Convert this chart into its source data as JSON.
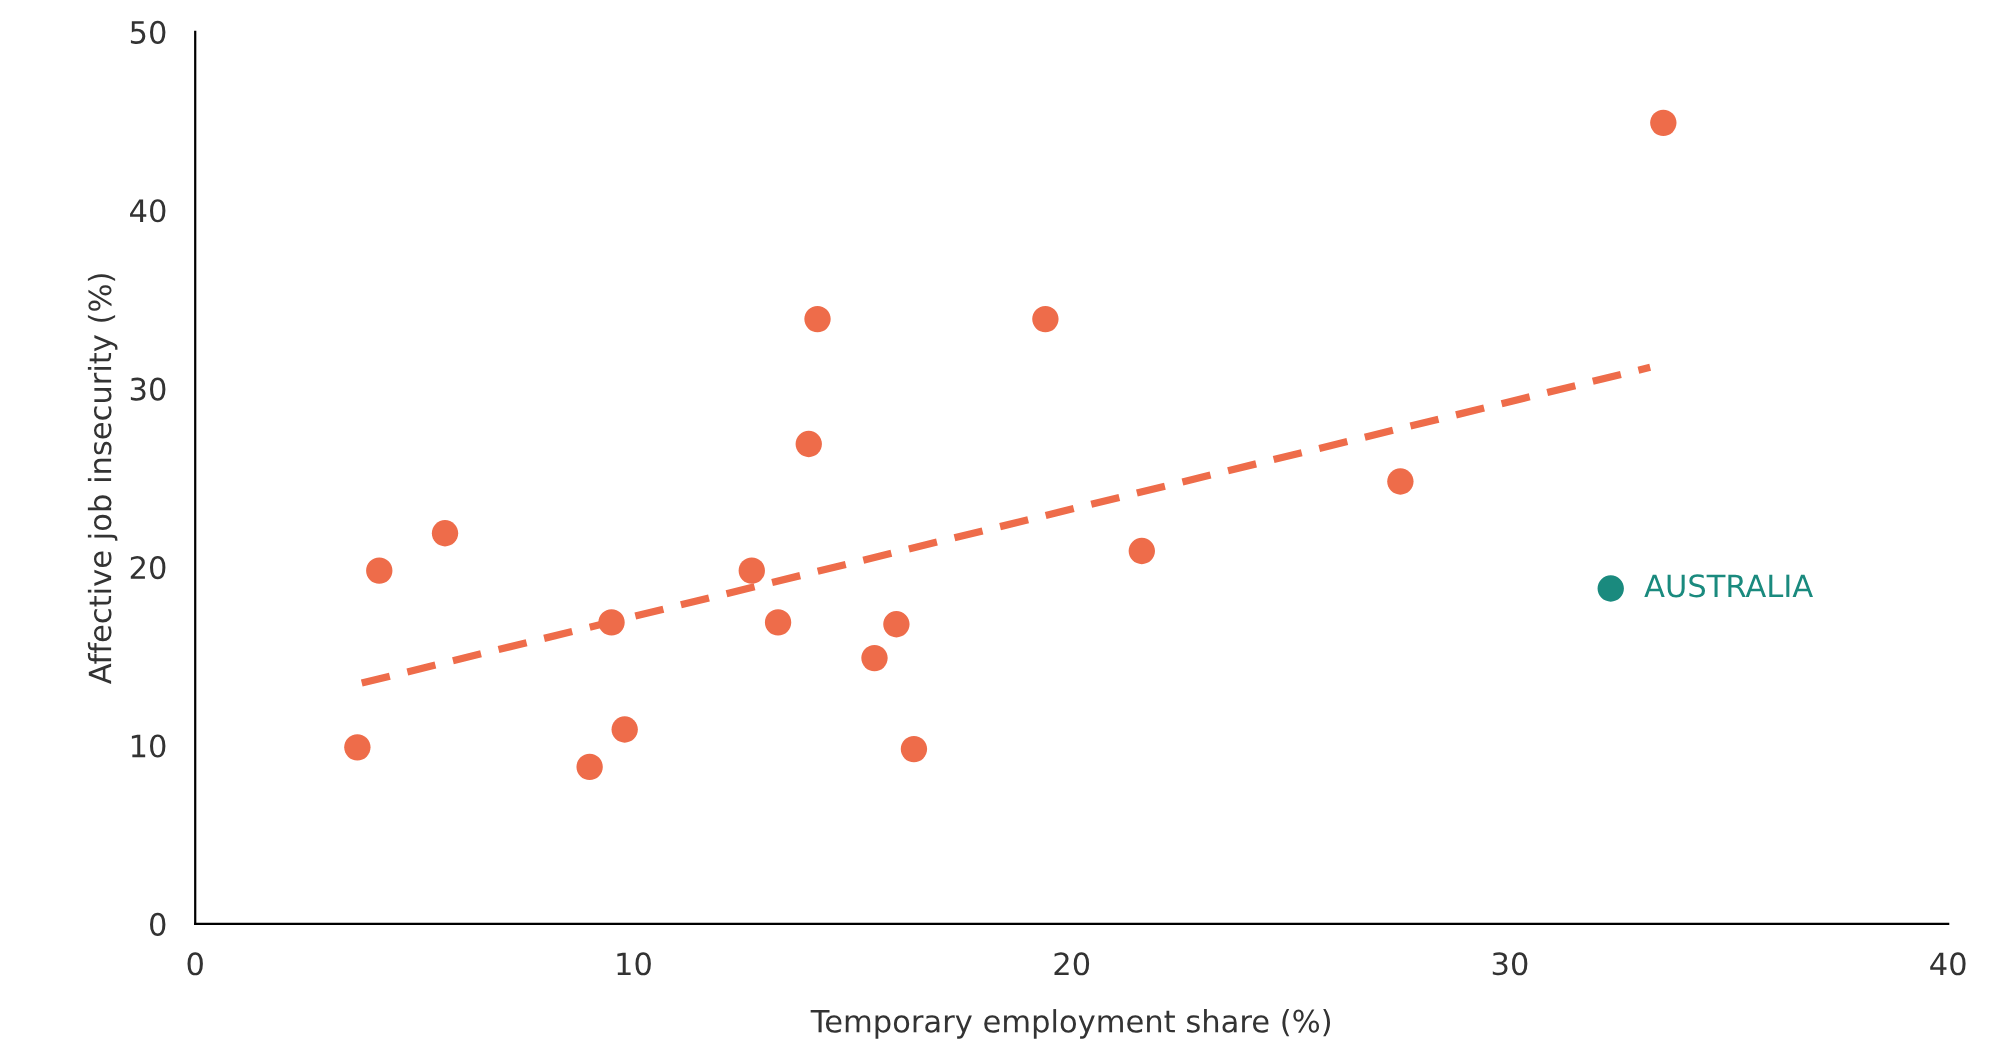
{
  "chart_data": {
    "type": "scatter",
    "xlabel": "Temporary employment share (%)",
    "ylabel": "Affective job insecurity (%)",
    "xlim": [
      0,
      40
    ],
    "ylim": [
      0,
      50
    ],
    "xticks": [
      0,
      10,
      20,
      30,
      40
    ],
    "yticks": [
      0,
      10,
      20,
      30,
      40,
      50
    ],
    "grid": false,
    "legend": false,
    "marker": "circle",
    "series": [
      {
        "color": "#ee6c4a",
        "x": [
          3.7,
          4.2,
          5.7,
          9.0,
          9.5,
          9.8,
          12.7,
          13.3,
          14.0,
          14.2,
          15.5,
          16.0,
          16.4,
          19.4,
          21.6,
          27.5,
          33.5
        ],
        "values": [
          9.9,
          19.8,
          21.9,
          8.8,
          16.9,
          10.9,
          19.8,
          16.9,
          26.9,
          33.9,
          14.9,
          16.8,
          9.8,
          33.9,
          20.9,
          24.8,
          44.9
        ]
      },
      {
        "color": "#1a8a7e",
        "x": [
          32.3
        ],
        "values": [
          18.8
        ]
      },
      {
        "type": "line",
        "color": "#ee6c4a",
        "line_style": "dashed",
        "marker": "none",
        "x": [
          3.8,
          33.2
        ],
        "values": [
          13.5,
          31.2
        ]
      }
    ],
    "annotations": [
      {
        "text": "AUSTRALIA",
        "x": 32.3,
        "y": 18.8
      }
    ]
  }
}
